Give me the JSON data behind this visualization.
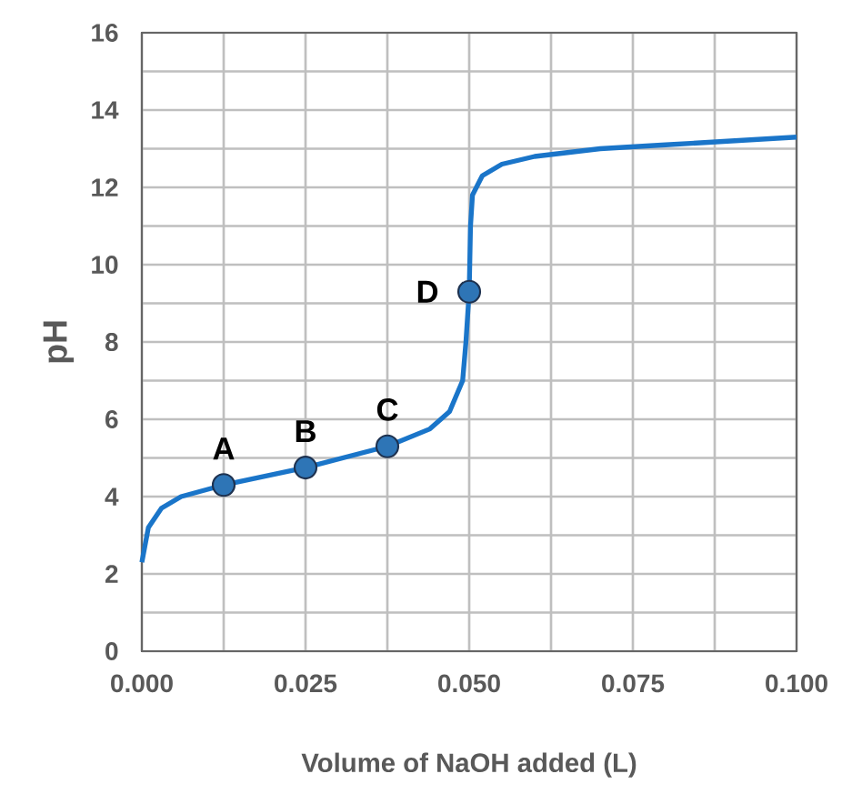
{
  "chart_data": {
    "type": "line",
    "xlabel": "Volume of NaOH added (L)",
    "ylabel": "pH",
    "xlim": [
      0,
      0.1
    ],
    "ylim": [
      0,
      16
    ],
    "xticks": [
      {
        "value": 0,
        "label": "0.000"
      },
      {
        "value": 0.0125,
        "label": null
      },
      {
        "value": 0.025,
        "label": "0.025"
      },
      {
        "value": 0.0375,
        "label": null
      },
      {
        "value": 0.05,
        "label": "0.050"
      },
      {
        "value": 0.0625,
        "label": null
      },
      {
        "value": 0.075,
        "label": "0.075"
      },
      {
        "value": 0.0875,
        "label": null
      },
      {
        "value": 0.1,
        "label": "0.100"
      }
    ],
    "yticks": [
      0,
      {
        "value": 1,
        "label": null
      },
      2,
      {
        "value": 3,
        "label": null
      },
      4,
      {
        "value": 5,
        "label": null
      },
      6,
      {
        "value": 7,
        "label": null
      },
      8,
      {
        "value": 9,
        "label": null
      },
      10,
      {
        "value": 11,
        "label": null
      },
      12,
      {
        "value": 13,
        "label": null
      },
      14,
      {
        "value": 15,
        "label": null
      },
      16
    ],
    "grid": true,
    "series": [
      {
        "color": "#1a75c9",
        "marker": "none",
        "line_style": "solid",
        "x": [
          0,
          0.001,
          0.003,
          0.006,
          0.0125,
          0.025,
          0.0375,
          0.044,
          0.047,
          0.049,
          0.0495,
          0.05,
          0.0502,
          0.0505,
          0.052,
          0.055,
          0.06,
          0.07,
          0.08,
          0.09,
          0.1
        ],
        "values": [
          2.3,
          3.2,
          3.7,
          4.0,
          4.3,
          4.75,
          5.3,
          5.75,
          6.2,
          7.0,
          8.0,
          9.3,
          11.0,
          11.8,
          12.3,
          12.6,
          12.8,
          13.0,
          13.1,
          13.2,
          13.3
        ]
      },
      {
        "type": "scatter",
        "color": "#2e75b6",
        "marker": "circle",
        "x": [
          0.0125,
          0.025,
          0.0375,
          0.05
        ],
        "values": [
          4.3,
          4.75,
          5.3,
          9.3
        ]
      }
    ],
    "annotations": [
      {
        "text": "A",
        "x": 0.0125,
        "y": 4.3
      },
      {
        "text": "B",
        "x": 0.025,
        "y": 4.75
      },
      {
        "text": "C",
        "x": 0.0375,
        "y": 5.3
      },
      {
        "text": "D",
        "x": 0.05,
        "y": 9.3
      }
    ]
  }
}
